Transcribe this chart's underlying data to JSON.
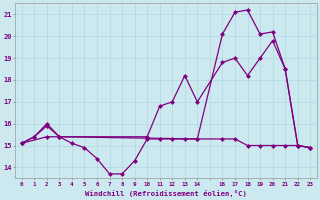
{
  "bg_color": "#cce9f0",
  "line_color": "#800080",
  "grid_color": "#aad4dd",
  "xlabel": "Windchill (Refroidissement éolien,°C)",
  "yticks": [
    14,
    15,
    16,
    17,
    18,
    19,
    20,
    21
  ],
  "xtick_positions": [
    0,
    1,
    2,
    3,
    4,
    5,
    6,
    7,
    8,
    9,
    10,
    11,
    12,
    13,
    14,
    15,
    16,
    17,
    18,
    19,
    20,
    21,
    22,
    23
  ],
  "xtick_labels": [
    "0",
    "1",
    "2",
    "3",
    "4",
    "5",
    "6",
    "7",
    "8",
    "9",
    "10",
    "11",
    "12",
    "13",
    "14",
    "",
    "16",
    "17",
    "18",
    "19",
    "20",
    "21",
    "22",
    "23"
  ],
  "xlim": [
    -0.5,
    23.5
  ],
  "ylim": [
    13.5,
    21.5
  ],
  "line1_x": [
    0,
    1,
    2,
    3,
    4,
    5,
    6,
    7,
    8,
    9,
    10,
    11,
    12,
    13,
    14,
    16,
    17,
    18,
    19,
    20,
    21,
    22,
    23
  ],
  "line1_y": [
    15.1,
    15.4,
    15.9,
    15.4,
    15.1,
    14.9,
    14.4,
    13.7,
    13.7,
    14.3,
    15.3,
    15.3,
    15.3,
    15.3,
    15.3,
    15.3,
    15.3,
    15.0,
    15.0,
    15.0,
    15.0,
    15.0,
    14.9
  ],
  "line2_x": [
    0,
    1,
    2,
    3,
    14,
    16,
    17,
    18,
    19,
    20,
    21,
    22,
    23
  ],
  "line2_y": [
    15.1,
    15.4,
    16.0,
    15.4,
    15.3,
    20.1,
    21.1,
    21.2,
    20.1,
    20.2,
    18.5,
    15.0,
    14.9
  ],
  "line3_x": [
    0,
    2,
    10,
    11,
    12,
    13,
    14,
    16,
    17,
    18,
    19,
    20,
    21,
    22,
    23
  ],
  "line3_y": [
    15.1,
    15.4,
    15.4,
    16.8,
    17.0,
    18.2,
    17.0,
    18.8,
    19.0,
    18.2,
    19.0,
    19.8,
    18.5,
    15.0,
    14.9
  ]
}
